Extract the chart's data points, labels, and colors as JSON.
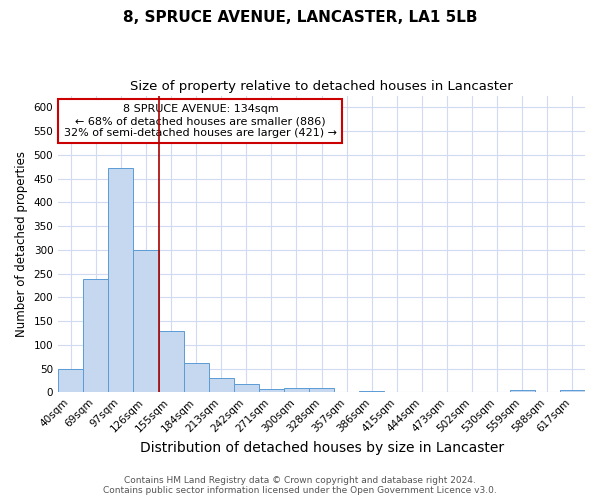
{
  "title": "8, SPRUCE AVENUE, LANCASTER, LA1 5LB",
  "subtitle": "Size of property relative to detached houses in Lancaster",
  "xlabel": "Distribution of detached houses by size in Lancaster",
  "ylabel": "Number of detached properties",
  "categories": [
    "40sqm",
    "69sqm",
    "97sqm",
    "126sqm",
    "155sqm",
    "184sqm",
    "213sqm",
    "242sqm",
    "271sqm",
    "300sqm",
    "328sqm",
    "357sqm",
    "386sqm",
    "415sqm",
    "444sqm",
    "473sqm",
    "502sqm",
    "530sqm",
    "559sqm",
    "588sqm",
    "617sqm"
  ],
  "values": [
    50,
    238,
    473,
    300,
    130,
    62,
    30,
    17,
    7,
    10,
    10,
    0,
    3,
    0,
    0,
    0,
    0,
    0,
    5,
    0,
    5
  ],
  "bar_color": "#c5d8f0",
  "bar_edge_color": "#5b9bd5",
  "background_color": "#ffffff",
  "grid_color": "#d0daf0",
  "vline_x": 3.5,
  "vline_color": "#aa0000",
  "annotation_text": "8 SPRUCE AVENUE: 134sqm\n← 68% of detached houses are smaller (886)\n32% of semi-detached houses are larger (421) →",
  "annotation_box_color": "#ffffff",
  "annotation_box_edge": "#cc0000",
  "ylim": [
    0,
    625
  ],
  "yticks": [
    0,
    50,
    100,
    150,
    200,
    250,
    300,
    350,
    400,
    450,
    500,
    550,
    600
  ],
  "footer_line1": "Contains HM Land Registry data © Crown copyright and database right 2024.",
  "footer_line2": "Contains public sector information licensed under the Open Government Licence v3.0.",
  "title_fontsize": 11,
  "subtitle_fontsize": 9.5,
  "xlabel_fontsize": 10,
  "ylabel_fontsize": 8.5,
  "tick_fontsize": 7.5,
  "annotation_fontsize": 8,
  "footer_fontsize": 6.5
}
